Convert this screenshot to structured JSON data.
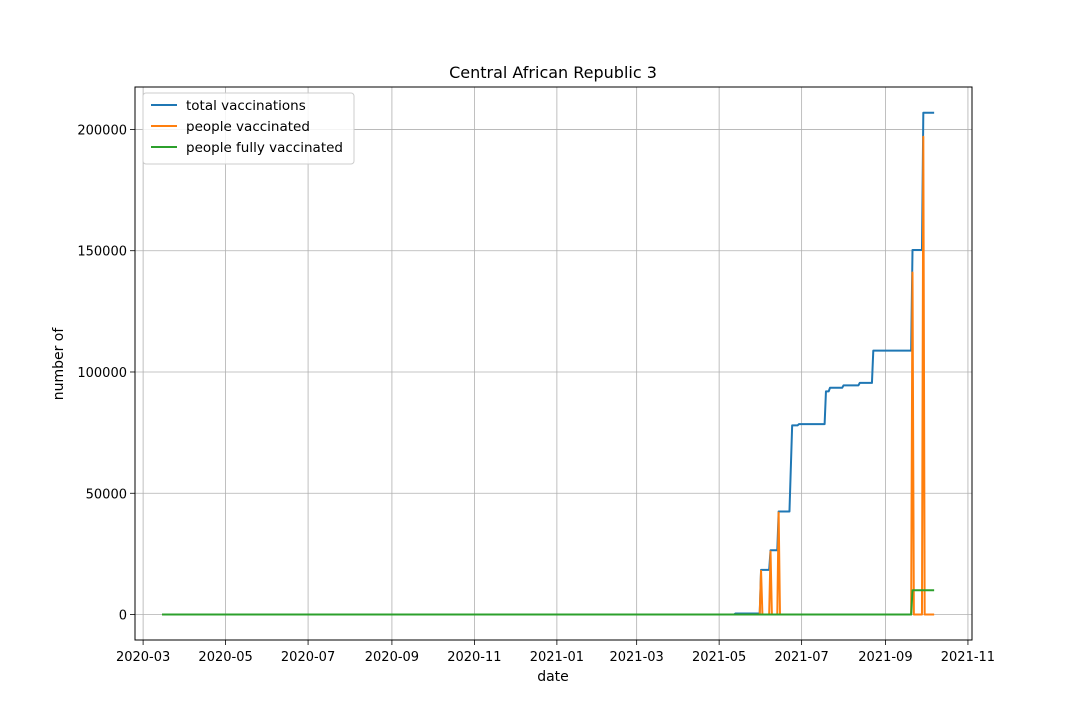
{
  "chart_data": {
    "type": "line",
    "title": "Central African Republic 3",
    "xlabel": "date",
    "ylabel": "number of",
    "xlim": [
      "2020-02-24",
      "2021-11-04"
    ],
    "ylim": [
      -10500,
      217500
    ],
    "x_ticks": [
      "2020-03",
      "2020-05",
      "2020-07",
      "2020-09",
      "2020-11",
      "2021-01",
      "2021-03",
      "2021-05",
      "2021-07",
      "2021-09",
      "2021-11"
    ],
    "y_ticks": [
      0,
      50000,
      100000,
      150000,
      200000
    ],
    "grid": true,
    "legend_position": "top-left",
    "series": [
      {
        "name": "total vaccinations",
        "color": "#1f77b4",
        "points": [
          [
            "2020-03-15",
            0
          ],
          [
            "2021-05-12",
            0
          ],
          [
            "2021-05-13",
            400
          ],
          [
            "2021-05-31",
            400
          ],
          [
            "2021-06-01",
            18400
          ],
          [
            "2021-06-07",
            18400
          ],
          [
            "2021-06-08",
            26500
          ],
          [
            "2021-06-13",
            26500
          ],
          [
            "2021-06-14",
            42500
          ],
          [
            "2021-06-22",
            42500
          ],
          [
            "2021-06-24",
            78000
          ],
          [
            "2021-06-28",
            78000
          ],
          [
            "2021-06-29",
            78500
          ],
          [
            "2021-07-18",
            78500
          ],
          [
            "2021-07-19",
            92000
          ],
          [
            "2021-07-21",
            92000
          ],
          [
            "2021-07-22",
            93500
          ],
          [
            "2021-07-31",
            93500
          ],
          [
            "2021-08-01",
            94500
          ],
          [
            "2021-08-12",
            94500
          ],
          [
            "2021-08-13",
            95500
          ],
          [
            "2021-08-22",
            95500
          ],
          [
            "2021-08-23",
            108800
          ],
          [
            "2021-09-20",
            108800
          ],
          [
            "2021-09-21",
            150300
          ],
          [
            "2021-09-28",
            150300
          ],
          [
            "2021-09-29",
            206900
          ],
          [
            "2021-10-07",
            206900
          ]
        ]
      },
      {
        "name": "people vaccinated",
        "color": "#ff7f0e",
        "points": [
          [
            "2020-03-15",
            0
          ],
          [
            "2021-05-31",
            0
          ],
          [
            "2021-06-01",
            18000
          ],
          [
            "2021-06-02",
            0
          ],
          [
            "2021-06-07",
            0
          ],
          [
            "2021-06-08",
            26000
          ],
          [
            "2021-06-09",
            0
          ],
          [
            "2021-06-13",
            0
          ],
          [
            "2021-06-14",
            42000
          ],
          [
            "2021-06-15",
            0
          ],
          [
            "2021-09-20",
            0
          ],
          [
            "2021-09-21",
            141000
          ],
          [
            "2021-09-22",
            0
          ],
          [
            "2021-09-28",
            0
          ],
          [
            "2021-09-29",
            197000
          ],
          [
            "2021-09-30",
            0
          ],
          [
            "2021-10-07",
            0
          ]
        ]
      },
      {
        "name": "people fully vaccinated",
        "color": "#2ca02c",
        "points": [
          [
            "2020-03-15",
            0
          ],
          [
            "2021-09-20",
            0
          ],
          [
            "2021-09-21",
            10000
          ],
          [
            "2021-10-07",
            10000
          ]
        ]
      }
    ]
  }
}
